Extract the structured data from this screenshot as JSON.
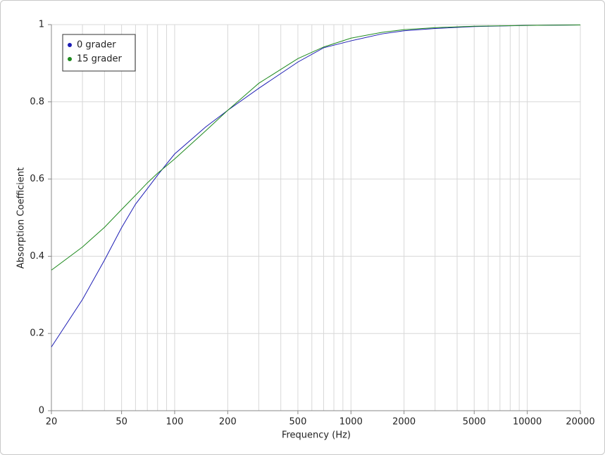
{
  "chart_data": {
    "type": "line",
    "x_label": "Frequency (Hz)",
    "y_label": "Absorption Coefficient",
    "x": [
      20,
      30,
      40,
      50,
      60,
      70,
      80,
      100,
      150,
      200,
      300,
      500,
      700,
      1000,
      1500,
      2000,
      3000,
      5000,
      10000,
      20000
    ],
    "series": [
      {
        "name": "0 grader",
        "color": "#1c1cb4",
        "values": [
          0.165,
          0.288,
          0.39,
          0.474,
          0.535,
          0.575,
          0.61,
          0.665,
          0.735,
          0.778,
          0.835,
          0.903,
          0.94,
          0.958,
          0.976,
          0.984,
          0.99,
          0.995,
          0.998,
          0.999
        ]
      },
      {
        "name": "15 grader",
        "color": "#1e8a1e",
        "values": [
          0.364,
          0.424,
          0.475,
          0.521,
          0.558,
          0.59,
          0.615,
          0.652,
          0.725,
          0.778,
          0.848,
          0.912,
          0.942,
          0.965,
          0.98,
          0.987,
          0.992,
          0.996,
          0.998,
          0.999
        ]
      }
    ],
    "xlim": [
      20,
      20000
    ],
    "ylim": [
      0,
      1
    ],
    "xlog": true,
    "xticks": [
      20,
      50,
      100,
      200,
      500,
      1000,
      2000,
      5000,
      10000,
      20000
    ],
    "xminorticks": [
      30,
      40,
      60,
      70,
      80,
      90,
      300,
      400,
      600,
      700,
      800,
      900,
      3000,
      4000,
      6000,
      7000,
      8000,
      9000
    ],
    "yticks": [
      0,
      0.2,
      0.4,
      0.6,
      0.8,
      1
    ],
    "grid": true,
    "legend": "top-left"
  }
}
